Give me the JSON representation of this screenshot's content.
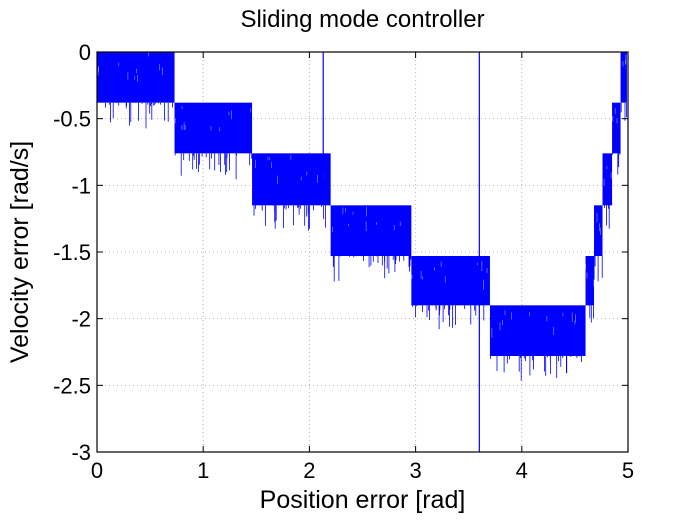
{
  "chart_data": {
    "type": "line",
    "title": "Sliding mode controller",
    "xlabel": "Position error [rad]",
    "ylabel": "Velocity error [rad/s]",
    "xlim": [
      0,
      5
    ],
    "ylim": [
      -3,
      0
    ],
    "xticks": [
      0,
      1,
      2,
      3,
      4,
      5
    ],
    "xtick_labels": [
      "0",
      "1",
      "2",
      "3",
      "4",
      "5"
    ],
    "yticks": [
      0,
      -0.5,
      -1,
      -1.5,
      -2,
      -2.5,
      -3
    ],
    "ytick_labels": [
      "0",
      "-0.5",
      "-1",
      "-1.5",
      "-2",
      "-2.5",
      "-3"
    ],
    "grid": true,
    "colors": {
      "series": "#0000ff",
      "grid": "#b4b4b4",
      "axes": "#000000"
    },
    "series": [
      {
        "chatter_bands": [
          {
            "x": [
              0.0,
              0.73
            ],
            "y": [
              -0.38,
              0.0
            ]
          },
          {
            "x": [
              0.73,
              1.46
            ],
            "y": [
              -0.76,
              -0.38
            ]
          },
          {
            "x": [
              1.46,
              2.2
            ],
            "y": [
              -1.15,
              -0.76
            ]
          },
          {
            "x": [
              2.2,
              2.96
            ],
            "y": [
              -1.53,
              -1.15
            ]
          },
          {
            "x": [
              2.96,
              3.7
            ],
            "y": [
              -1.9,
              -1.53
            ]
          },
          {
            "x": [
              3.7,
              4.6
            ],
            "y": [
              -2.28,
              -1.9
            ]
          },
          {
            "x": [
              4.6,
              4.68
            ],
            "y": [
              -1.9,
              -1.53
            ]
          },
          {
            "x": [
              4.68,
              4.76
            ],
            "y": [
              -1.53,
              -1.15
            ]
          },
          {
            "x": [
              4.76,
              4.85
            ],
            "y": [
              -1.15,
              -0.76
            ]
          },
          {
            "x": [
              4.85,
              4.93
            ],
            "y": [
              -0.76,
              -0.38
            ]
          },
          {
            "x": [
              4.93,
              4.99
            ],
            "y": [
              -0.38,
              0.0
            ]
          }
        ],
        "spikes": [
          {
            "x": 2.13,
            "y": [
              -1.05,
              0.0
            ]
          },
          {
            "x": 3.6,
            "y": [
              -3.0,
              0.0
            ]
          }
        ]
      }
    ]
  }
}
